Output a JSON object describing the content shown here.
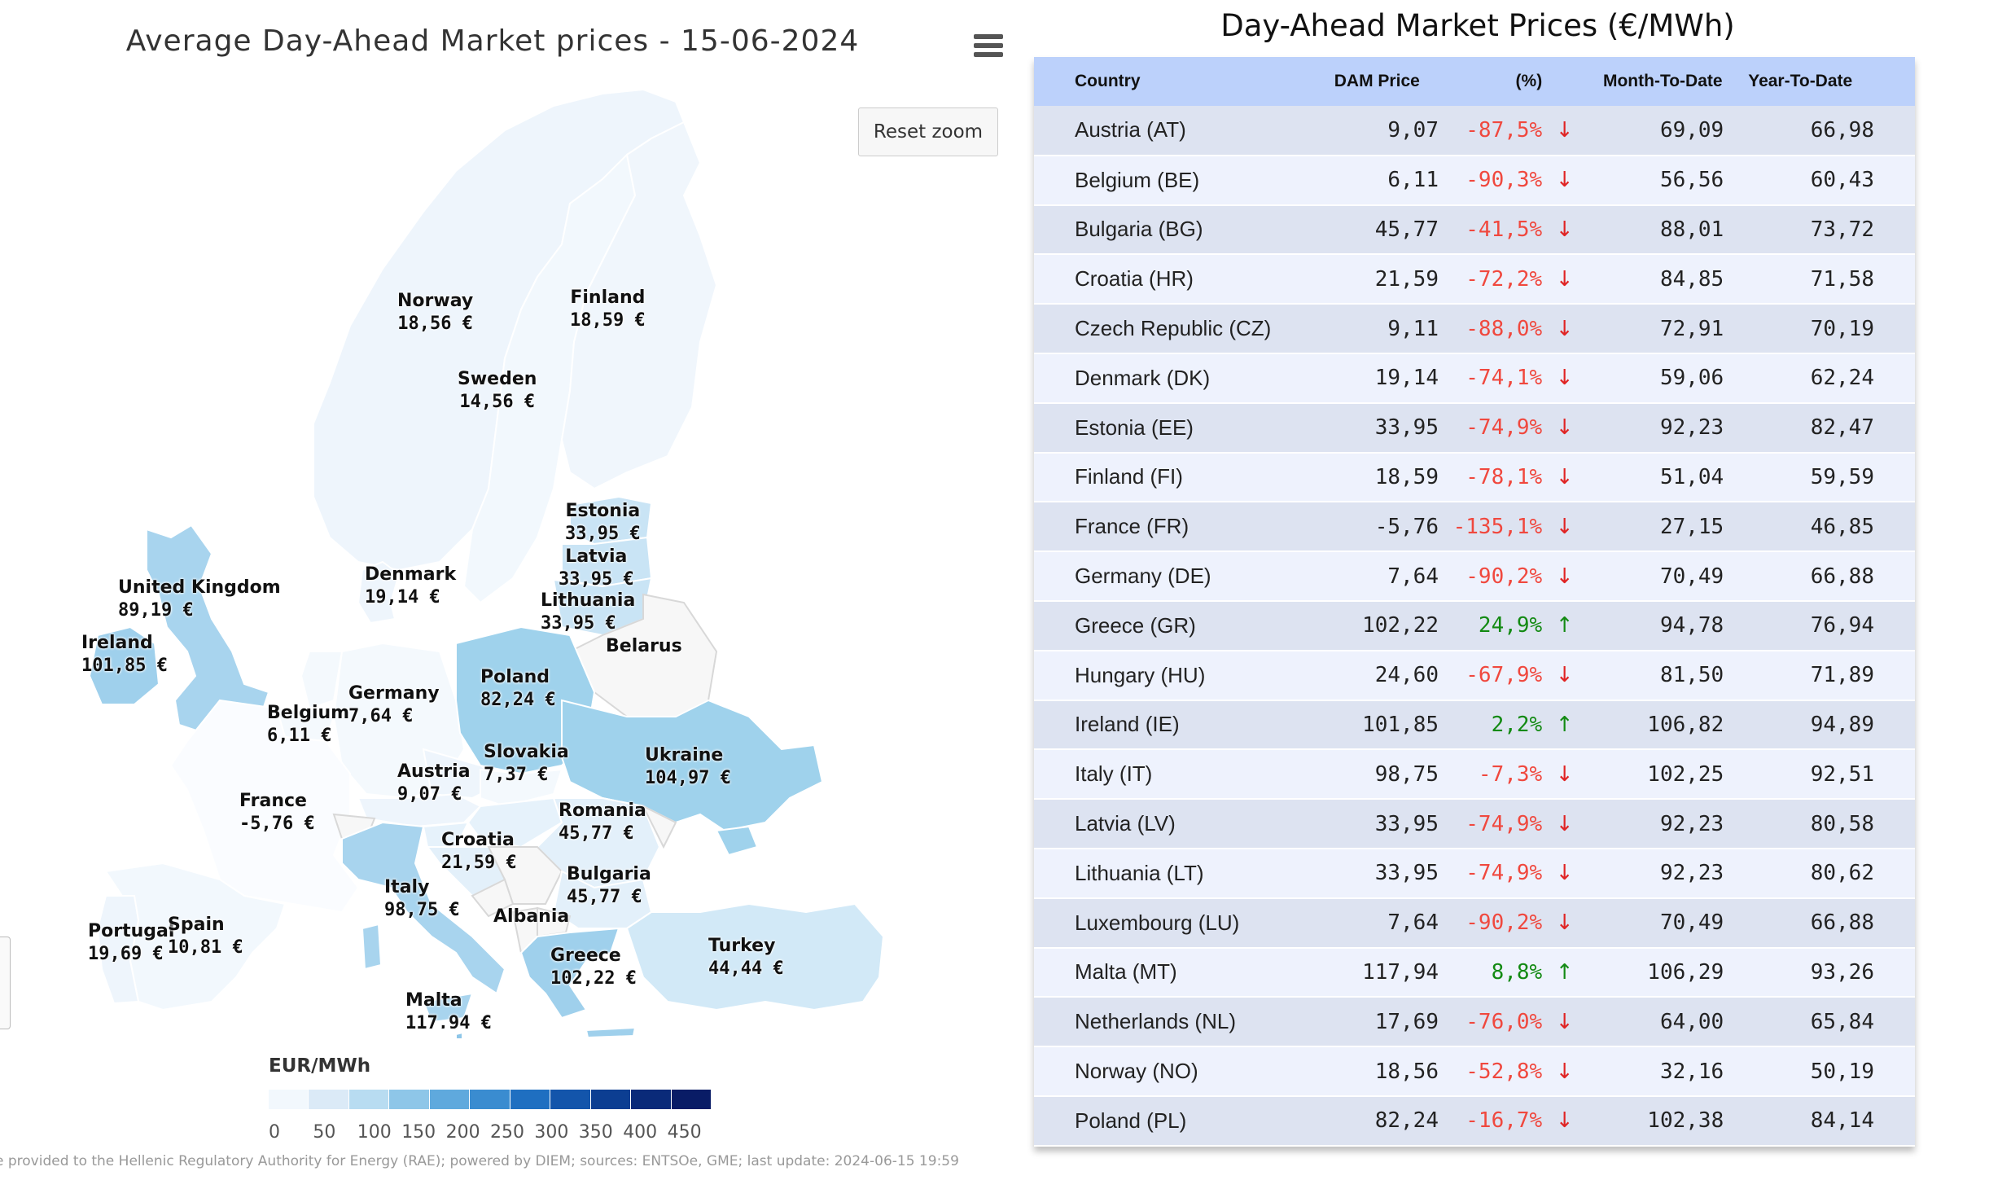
{
  "map": {
    "title": "Average Day-Ahead Market prices - 15-06-2024",
    "reset_zoom_label": "Reset zoom",
    "legend_title": "EUR/MWh",
    "legend_ticks": [
      "0",
      "50",
      "100",
      "150",
      "200",
      "250",
      "300",
      "350",
      "400",
      "450"
    ],
    "legend_colors": [
      "#f2f8fd",
      "#dbeaf7",
      "#b8dcf1",
      "#8ec6e8",
      "#5fa9dd",
      "#3a8cd0",
      "#1f6fc1",
      "#1355ab",
      "#0c3e92",
      "#0a2a79",
      "#091c66"
    ],
    "credits": "e provided to the Hellenic Regulatory Authority for Energy (RAE); powered by DIEM; sources: ENTSOe, GME; last update: 2024-06-15 19:59",
    "labels": {
      "norway": {
        "name": "Norway",
        "value": "18,56 €"
      },
      "finland": {
        "name": "Finland",
        "value": "18,59 €"
      },
      "sweden": {
        "name": "Sweden",
        "value": "14,56 €"
      },
      "estonia": {
        "name": "Estonia",
        "value": "33,95 €"
      },
      "latvia": {
        "name": "Latvia",
        "value": "33,95 €"
      },
      "lithuania": {
        "name": "Lithuania",
        "value": "33,95 €"
      },
      "denmark": {
        "name": "Denmark",
        "value": "19,14 €"
      },
      "uk": {
        "name": "United Kingdom",
        "value": "89,19 €"
      },
      "ireland": {
        "name": "Ireland",
        "value": "101,85 €"
      },
      "belarus": {
        "name": "Belarus",
        "value": ""
      },
      "poland": {
        "name": "Poland",
        "value": "82,24 €"
      },
      "germany": {
        "name": "Germany",
        "value": "7,64 €"
      },
      "belgium": {
        "name": "Belgium",
        "value": "6,11 €"
      },
      "slovakia": {
        "name": "Slovakia",
        "value": "7,37 €"
      },
      "ukraine": {
        "name": "Ukraine",
        "value": "104,97 €"
      },
      "austria": {
        "name": "Austria",
        "value": "9,07 €"
      },
      "france": {
        "name": "France",
        "value": "-5,76 €"
      },
      "romania": {
        "name": "Romania",
        "value": "45,77 €"
      },
      "croatia": {
        "name": "Croatia",
        "value": "21,59 €"
      },
      "bulgaria": {
        "name": "Bulgaria",
        "value": "45,77 €"
      },
      "italy": {
        "name": "Italy",
        "value": "98,75 €"
      },
      "albania": {
        "name": "Albania",
        "value": ""
      },
      "portugal": {
        "name": "Portugal",
        "value": "19,69 €"
      },
      "spain": {
        "name": "Spain",
        "value": "10,81 €"
      },
      "greece": {
        "name": "Greece",
        "value": "102,22 €"
      },
      "turkey": {
        "name": "Turkey",
        "value": "44,44 €"
      },
      "malta": {
        "name": "Malta",
        "value": "117,94 €"
      }
    }
  },
  "table": {
    "title": "Day-Ahead Market Prices (€/MWh)",
    "headers": {
      "country": "Country",
      "dam": "DAM Price",
      "pct": "(%)",
      "mtd": "Month-To-Date",
      "ytd": "Year-To-Date"
    },
    "rows": [
      {
        "country": "Austria (AT)",
        "dam": "9,07",
        "pct": "-87,5%",
        "dir": "down",
        "mtd": "69,09",
        "ytd": "66,98"
      },
      {
        "country": "Belgium (BE)",
        "dam": "6,11",
        "pct": "-90,3%",
        "dir": "down",
        "mtd": "56,56",
        "ytd": "60,43"
      },
      {
        "country": "Bulgaria (BG)",
        "dam": "45,77",
        "pct": "-41,5%",
        "dir": "down",
        "mtd": "88,01",
        "ytd": "73,72"
      },
      {
        "country": "Croatia (HR)",
        "dam": "21,59",
        "pct": "-72,2%",
        "dir": "down",
        "mtd": "84,85",
        "ytd": "71,58"
      },
      {
        "country": "Czech Republic (CZ)",
        "dam": "9,11",
        "pct": "-88,0%",
        "dir": "down",
        "mtd": "72,91",
        "ytd": "70,19"
      },
      {
        "country": "Denmark (DK)",
        "dam": "19,14",
        "pct": "-74,1%",
        "dir": "down",
        "mtd": "59,06",
        "ytd": "62,24"
      },
      {
        "country": "Estonia (EE)",
        "dam": "33,95",
        "pct": "-74,9%",
        "dir": "down",
        "mtd": "92,23",
        "ytd": "82,47"
      },
      {
        "country": "Finland (FI)",
        "dam": "18,59",
        "pct": "-78,1%",
        "dir": "down",
        "mtd": "51,04",
        "ytd": "59,59"
      },
      {
        "country": "France (FR)",
        "dam": "-5,76",
        "pct": "-135,1%",
        "dir": "down",
        "mtd": "27,15",
        "ytd": "46,85"
      },
      {
        "country": "Germany (DE)",
        "dam": "7,64",
        "pct": "-90,2%",
        "dir": "down",
        "mtd": "70,49",
        "ytd": "66,88"
      },
      {
        "country": "Greece (GR)",
        "dam": "102,22",
        "pct": "24,9%",
        "dir": "up",
        "mtd": "94,78",
        "ytd": "76,94"
      },
      {
        "country": "Hungary (HU)",
        "dam": "24,60",
        "pct": "-67,9%",
        "dir": "down",
        "mtd": "81,50",
        "ytd": "71,89"
      },
      {
        "country": "Ireland (IE)",
        "dam": "101,85",
        "pct": "2,2%",
        "dir": "up",
        "mtd": "106,82",
        "ytd": "94,89"
      },
      {
        "country": "Italy (IT)",
        "dam": "98,75",
        "pct": "-7,3%",
        "dir": "down",
        "mtd": "102,25",
        "ytd": "92,51"
      },
      {
        "country": "Latvia (LV)",
        "dam": "33,95",
        "pct": "-74,9%",
        "dir": "down",
        "mtd": "92,23",
        "ytd": "80,58"
      },
      {
        "country": "Lithuania (LT)",
        "dam": "33,95",
        "pct": "-74,9%",
        "dir": "down",
        "mtd": "92,23",
        "ytd": "80,62"
      },
      {
        "country": "Luxembourg (LU)",
        "dam": "7,64",
        "pct": "-90,2%",
        "dir": "down",
        "mtd": "70,49",
        "ytd": "66,88"
      },
      {
        "country": "Malta (MT)",
        "dam": "117,94",
        "pct": "8,8%",
        "dir": "up",
        "mtd": "106,29",
        "ytd": "93,26"
      },
      {
        "country": "Netherlands (NL)",
        "dam": "17,69",
        "pct": "-76,0%",
        "dir": "down",
        "mtd": "64,00",
        "ytd": "65,84"
      },
      {
        "country": "Norway (NO)",
        "dam": "18,56",
        "pct": "-52,8%",
        "dir": "down",
        "mtd": "32,16",
        "ytd": "50,19"
      },
      {
        "country": "Poland (PL)",
        "dam": "82,24",
        "pct": "-16,7%",
        "dir": "down",
        "mtd": "102,38",
        "ytd": "84,14"
      }
    ]
  }
}
